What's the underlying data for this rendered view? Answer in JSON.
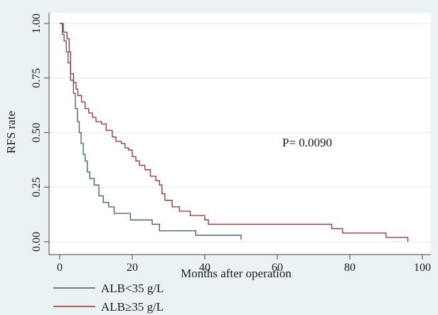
{
  "chart_data": {
    "type": "line",
    "subtype": "kaplan-meier step",
    "xlabel": "Months after operation",
    "ylabel": "RFS rate",
    "xlim": [
      0,
      100
    ],
    "ylim": [
      0,
      1
    ],
    "x_ticks": [
      0,
      20,
      40,
      60,
      80,
      100
    ],
    "y_ticks": [
      0,
      0.25,
      0.5,
      0.75,
      1
    ],
    "y_tick_labels": [
      "0.00",
      "0.25",
      "0.50",
      "0.75",
      "1.00"
    ],
    "grid": "horizontal",
    "annotation": "P= 0.0090",
    "legend_position": "bottom-left",
    "background_color": "#eaf2f3",
    "plot_background": "#ffffff",
    "series": [
      {
        "name": "ALB<35 g/L",
        "color": "#3b5a7a",
        "x": [
          0,
          0.7,
          1.2,
          1.8,
          2.3,
          3.0,
          3.8,
          4.3,
          4.9,
          5.4,
          5.9,
          6.5,
          7.0,
          7.6,
          8.3,
          9.5,
          10.8,
          12.0,
          13.5,
          15.0,
          16.5,
          18.0,
          19.5,
          21.5,
          24.0,
          25.5,
          27.5,
          28.5,
          37.5,
          45.0,
          50.0
        ],
        "y": [
          1.0,
          0.95,
          0.92,
          0.87,
          0.82,
          0.74,
          0.68,
          0.61,
          0.55,
          0.5,
          0.45,
          0.4,
          0.37,
          0.32,
          0.29,
          0.26,
          0.21,
          0.18,
          0.16,
          0.13,
          0.13,
          0.13,
          0.1,
          0.1,
          0.1,
          0.08,
          0.05,
          0.05,
          0.03,
          0.03,
          0.01
        ]
      },
      {
        "name": "ALB≥35 g/L",
        "color": "#9c2f2a",
        "x": [
          0,
          1.0,
          2.0,
          2.6,
          3.0,
          3.8,
          4.5,
          5.0,
          6.0,
          7.0,
          8.0,
          9.0,
          10.0,
          11.5,
          12.8,
          14.5,
          15.5,
          17.0,
          18.0,
          19.0,
          20.0,
          21.0,
          22.0,
          23.5,
          25.0,
          26.5,
          27.5,
          28.2,
          29.0,
          31.0,
          33.0,
          36.0,
          38.0,
          40.0,
          41.0,
          45.0,
          60.0,
          75.0,
          78.0,
          88.0,
          90.0,
          96.0
        ],
        "y": [
          1.0,
          0.96,
          0.93,
          0.87,
          0.77,
          0.73,
          0.7,
          0.67,
          0.64,
          0.61,
          0.59,
          0.57,
          0.55,
          0.54,
          0.51,
          0.48,
          0.46,
          0.45,
          0.43,
          0.42,
          0.39,
          0.37,
          0.35,
          0.33,
          0.3,
          0.28,
          0.26,
          0.22,
          0.19,
          0.16,
          0.14,
          0.12,
          0.12,
          0.1,
          0.08,
          0.08,
          0.08,
          0.06,
          0.04,
          0.04,
          0.02,
          0.0
        ]
      }
    ]
  }
}
